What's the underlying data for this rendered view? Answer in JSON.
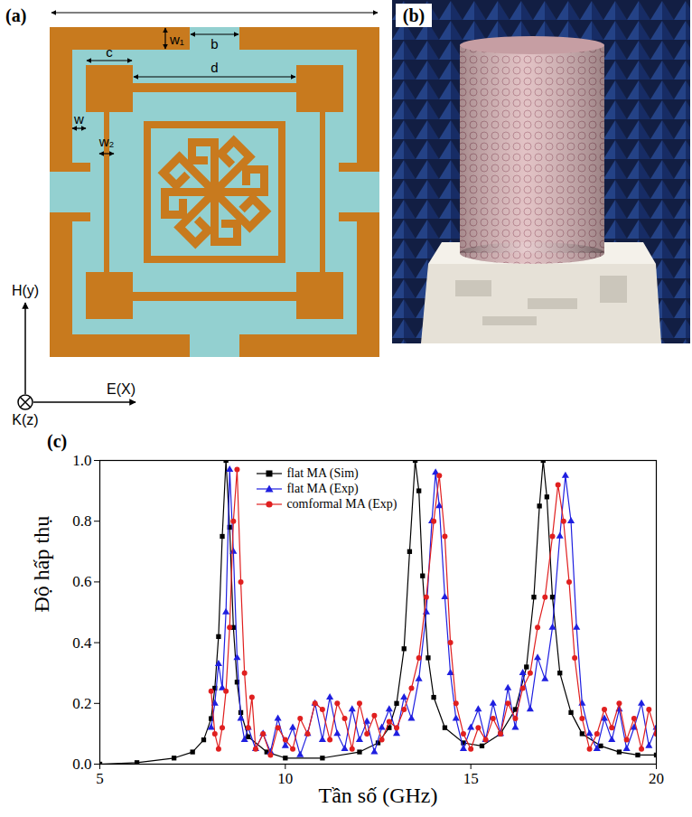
{
  "diagram": {
    "panel_label": "(a)",
    "dimension_labels": {
      "w1": "w₁",
      "b": "b",
      "c": "c",
      "d": "d",
      "w": "w",
      "w2": "w₂"
    },
    "axis_labels": {
      "H": "H(y)",
      "K": "K(z)",
      "E": "E(X)"
    }
  },
  "photo": {
    "panel_label": "(b)"
  },
  "chart_data": {
    "type": "line",
    "panel_label": "(c)",
    "xlabel": "Tần số (GHz)",
    "ylabel": "Độ hấp thụ",
    "xlim": [
      5,
      20
    ],
    "ylim": [
      0,
      1
    ],
    "xticks": [
      5,
      10,
      15,
      20
    ],
    "yticks": [
      {
        "value": 0,
        "label": "0.0"
      },
      {
        "value": 0.2,
        "label": "0.2"
      },
      {
        "value": 0.4,
        "label": "0.4"
      },
      {
        "value": 0.6,
        "label": "0.6"
      },
      {
        "value": 0.8,
        "label": "0.8"
      },
      {
        "value": 1,
        "label": "1.0"
      }
    ],
    "legend": "top",
    "series": [
      {
        "name": "flat MA (Sim)",
        "color": "#000000",
        "marker": "square",
        "line_style": "solid",
        "x": [
          5,
          6,
          7,
          7.5,
          7.8,
          8.0,
          8.1,
          8.2,
          8.3,
          8.4,
          8.5,
          8.6,
          8.7,
          8.8,
          9.0,
          9.5,
          10,
          11,
          12,
          12.5,
          12.8,
          13.0,
          13.2,
          13.35,
          13.5,
          13.6,
          13.7,
          13.85,
          14.0,
          14.3,
          14.8,
          15.3,
          15.8,
          16.2,
          16.5,
          16.7,
          16.85,
          16.95,
          17.05,
          17.2,
          17.4,
          17.7,
          18.0,
          18.5,
          19,
          19.5,
          20
        ],
        "values": [
          0.0,
          0.005,
          0.02,
          0.04,
          0.08,
          0.15,
          0.25,
          0.42,
          0.75,
          1.0,
          0.78,
          0.45,
          0.27,
          0.17,
          0.09,
          0.04,
          0.02,
          0.02,
          0.04,
          0.07,
          0.12,
          0.2,
          0.38,
          0.7,
          1.0,
          0.9,
          0.62,
          0.35,
          0.22,
          0.12,
          0.07,
          0.06,
          0.1,
          0.18,
          0.32,
          0.55,
          0.85,
          1.0,
          0.88,
          0.55,
          0.3,
          0.17,
          0.1,
          0.06,
          0.04,
          0.03,
          0.03
        ]
      },
      {
        "name": "flat MA (Exp)",
        "color": "#1f1fe0",
        "marker": "triangle",
        "line_style": "solid",
        "x": [
          8.0,
          8.1,
          8.2,
          8.3,
          8.4,
          8.5,
          8.6,
          8.7,
          8.8,
          8.9,
          9.0,
          9.2,
          9.4,
          9.6,
          9.8,
          10.0,
          10.2,
          10.4,
          10.6,
          10.8,
          11.0,
          11.2,
          11.4,
          11.6,
          11.8,
          12.0,
          12.2,
          12.4,
          12.6,
          12.8,
          13.0,
          13.2,
          13.4,
          13.6,
          13.8,
          13.95,
          14.05,
          14.15,
          14.3,
          14.45,
          14.6,
          14.8,
          15.0,
          15.2,
          15.4,
          15.6,
          15.8,
          16.0,
          16.2,
          16.4,
          16.6,
          16.8,
          17.0,
          17.2,
          17.4,
          17.55,
          17.7,
          17.85,
          18.0,
          18.2,
          18.4,
          18.6,
          18.8,
          19.0,
          19.2,
          19.4,
          19.6,
          19.8,
          20.0
        ],
        "values": [
          0.12,
          0.2,
          0.33,
          0.25,
          0.5,
          0.97,
          0.7,
          0.35,
          0.15,
          0.08,
          0.12,
          0.05,
          0.1,
          0.04,
          0.15,
          0.06,
          0.12,
          0.03,
          0.1,
          0.2,
          0.08,
          0.22,
          0.1,
          0.05,
          0.18,
          0.08,
          0.14,
          0.04,
          0.12,
          0.18,
          0.1,
          0.22,
          0.15,
          0.28,
          0.5,
          0.8,
          0.96,
          0.85,
          0.55,
          0.3,
          0.15,
          0.05,
          0.12,
          0.18,
          0.08,
          0.2,
          0.1,
          0.25,
          0.12,
          0.3,
          0.18,
          0.35,
          0.28,
          0.45,
          0.75,
          0.95,
          0.8,
          0.45,
          0.2,
          0.1,
          0.05,
          0.15,
          0.08,
          0.18,
          0.05,
          0.12,
          0.2,
          0.06,
          0.12
        ]
      },
      {
        "name": "comformal MA (Exp)",
        "color": "#e01f1f",
        "marker": "circle",
        "line_style": "solid",
        "x": [
          8.0,
          8.1,
          8.2,
          8.3,
          8.4,
          8.5,
          8.6,
          8.7,
          8.8,
          8.9,
          9.0,
          9.1,
          9.2,
          9.4,
          9.6,
          9.8,
          10.0,
          10.2,
          10.4,
          10.6,
          10.8,
          11.0,
          11.2,
          11.4,
          11.6,
          11.8,
          12.0,
          12.2,
          12.4,
          12.6,
          12.8,
          13.0,
          13.2,
          13.4,
          13.6,
          13.8,
          14.0,
          14.15,
          14.3,
          14.45,
          14.6,
          14.8,
          15.0,
          15.2,
          15.4,
          15.6,
          15.8,
          16.0,
          16.2,
          16.4,
          16.6,
          16.8,
          17.0,
          17.2,
          17.35,
          17.5,
          17.65,
          17.8,
          18.0,
          18.2,
          18.4,
          18.6,
          18.8,
          19.0,
          19.2,
          19.4,
          19.6,
          19.8,
          20.0
        ],
        "values": [
          0.24,
          0.1,
          0.05,
          0.12,
          0.24,
          0.45,
          0.8,
          0.97,
          0.6,
          0.3,
          0.12,
          0.22,
          0.05,
          0.1,
          0.03,
          0.12,
          0.08,
          0.05,
          0.15,
          0.1,
          0.2,
          0.18,
          0.08,
          0.2,
          0.15,
          0.05,
          0.2,
          0.1,
          0.16,
          0.08,
          0.14,
          0.12,
          0.18,
          0.25,
          0.35,
          0.55,
          0.8,
          0.95,
          0.75,
          0.4,
          0.2,
          0.1,
          0.05,
          0.12,
          0.08,
          0.15,
          0.1,
          0.2,
          0.15,
          0.25,
          0.3,
          0.45,
          0.55,
          0.75,
          0.92,
          0.8,
          0.6,
          0.35,
          0.15,
          0.05,
          0.1,
          0.18,
          0.12,
          0.2,
          0.08,
          0.15,
          0.05,
          0.18,
          0.1
        ]
      }
    ]
  }
}
